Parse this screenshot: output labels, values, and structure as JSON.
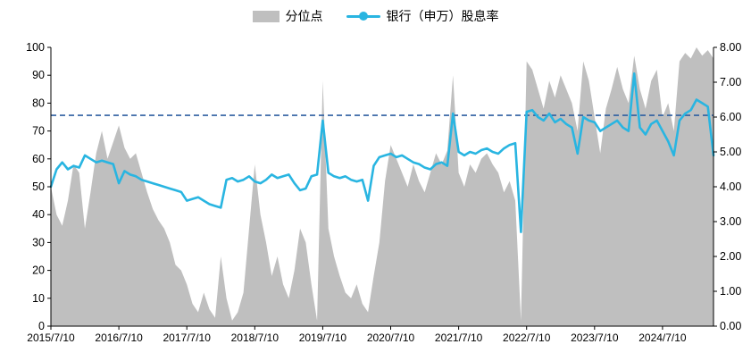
{
  "legend": {
    "area_label": "分位点",
    "line_label": "银行（申万）股息率"
  },
  "colors": {
    "area": "#bfbfbf",
    "line": "#29b5e1",
    "reference": "#2e5fa0",
    "axis": "#000000",
    "text": "#000000"
  },
  "chart_data": {
    "type": "line",
    "title": "",
    "legend_position": "top",
    "grid": false,
    "x_tick_labels": [
      "2015/7/10",
      "2016/7/10",
      "2017/7/10",
      "2018/7/10",
      "2019/7/10",
      "2020/7/10",
      "2021/7/10",
      "2022/7/10",
      "2023/7/10",
      "2024/7/10"
    ],
    "x_tick_indices": [
      0,
      12,
      24,
      36,
      48,
      60,
      72,
      84,
      96,
      108
    ],
    "n_points": 118,
    "left_axis": {
      "min": 0,
      "max": 100,
      "ticks": [
        0,
        10,
        20,
        30,
        40,
        50,
        60,
        70,
        80,
        90,
        100
      ]
    },
    "right_axis": {
      "min": 0,
      "max": 8,
      "ticks": [
        "0.00",
        "1.00",
        "2.00",
        "3.00",
        "4.00",
        "5.00",
        "6.00",
        "7.00",
        "8.00"
      ]
    },
    "reference_line": {
      "axis": "right",
      "value": 6.05,
      "style": "dashed"
    },
    "series": [
      {
        "name": "分位点",
        "axis": "left",
        "render": "area",
        "values": [
          50,
          40,
          36,
          45,
          58,
          55,
          35,
          48,
          62,
          70,
          60,
          66,
          72,
          64,
          60,
          62,
          55,
          48,
          42,
          38,
          35,
          30,
          22,
          20,
          15,
          8,
          5,
          12,
          6,
          3,
          25,
          10,
          2,
          5,
          12,
          35,
          58,
          40,
          30,
          18,
          25,
          15,
          10,
          20,
          35,
          30,
          15,
          2,
          88,
          35,
          25,
          18,
          12,
          10,
          15,
          8,
          5,
          18,
          30,
          52,
          65,
          60,
          55,
          50,
          58,
          52,
          48,
          55,
          62,
          58,
          63,
          90,
          55,
          50,
          58,
          55,
          60,
          62,
          58,
          55,
          48,
          52,
          45,
          2,
          95,
          92,
          85,
          78,
          88,
          82,
          90,
          85,
          80,
          70,
          95,
          88,
          75,
          62,
          78,
          85,
          93,
          85,
          80,
          97,
          85,
          78,
          88,
          92,
          75,
          80,
          70,
          95,
          98,
          96,
          100,
          97,
          99,
          96
        ]
      },
      {
        "name": "银行（申万）股息率",
        "axis": "right",
        "render": "line",
        "values": [
          4.0,
          4.5,
          4.7,
          4.5,
          4.6,
          4.55,
          4.9,
          4.8,
          4.7,
          4.75,
          4.7,
          4.65,
          4.1,
          4.45,
          4.35,
          4.3,
          4.2,
          4.15,
          4.1,
          4.05,
          4.0,
          3.95,
          3.9,
          3.85,
          3.6,
          3.65,
          3.7,
          3.6,
          3.5,
          3.45,
          3.4,
          4.2,
          4.25,
          4.15,
          4.2,
          4.3,
          4.15,
          4.1,
          4.2,
          4.35,
          4.25,
          4.3,
          4.35,
          4.1,
          3.9,
          3.95,
          4.3,
          4.35,
          5.9,
          4.4,
          4.3,
          4.25,
          4.3,
          4.2,
          4.15,
          4.2,
          3.6,
          4.6,
          4.85,
          4.9,
          4.95,
          4.85,
          4.9,
          4.8,
          4.7,
          4.65,
          4.55,
          4.5,
          4.65,
          4.7,
          4.6,
          6.1,
          5.0,
          4.9,
          5.0,
          4.95,
          5.05,
          5.1,
          5.0,
          4.95,
          5.1,
          5.2,
          5.25,
          2.7,
          6.15,
          6.2,
          6.0,
          5.9,
          6.1,
          5.85,
          5.95,
          5.8,
          5.7,
          4.95,
          6.0,
          5.9,
          5.85,
          5.6,
          5.7,
          5.8,
          5.9,
          5.7,
          5.6,
          7.25,
          5.7,
          5.5,
          5.8,
          5.9,
          5.6,
          5.3,
          4.9,
          5.9,
          6.1,
          6.2,
          6.5,
          6.4,
          6.3,
          4.9
        ]
      }
    ]
  }
}
